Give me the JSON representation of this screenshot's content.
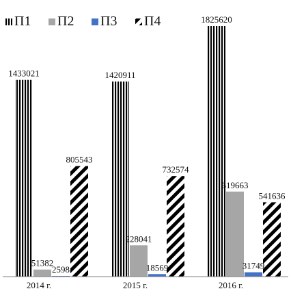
{
  "chart_data": {
    "type": "bar",
    "title": "",
    "xlabel": "",
    "ylabel": "",
    "categories": [
      "2014 г.",
      "2015 г.",
      "2016 г."
    ],
    "ylim": [
      0,
      1825620
    ],
    "grid": false,
    "legend_position": "top-left",
    "series": [
      {
        "name": "П1",
        "pattern": "vertical-stripes",
        "color": "#000000",
        "values": [
          1433021,
          1420911,
          1825620
        ]
      },
      {
        "name": "П2",
        "pattern": "solid",
        "color": "#a6a6a6",
        "values": [
          51382,
          228041,
          619663
        ]
      },
      {
        "name": "П3",
        "pattern": "solid",
        "color": "#4472c4",
        "values": [
          2598,
          18569,
          31749
        ]
      },
      {
        "name": "П4",
        "pattern": "diagonal-stripes",
        "color": "#000000",
        "values": [
          805543,
          732574,
          541636
        ]
      }
    ]
  }
}
